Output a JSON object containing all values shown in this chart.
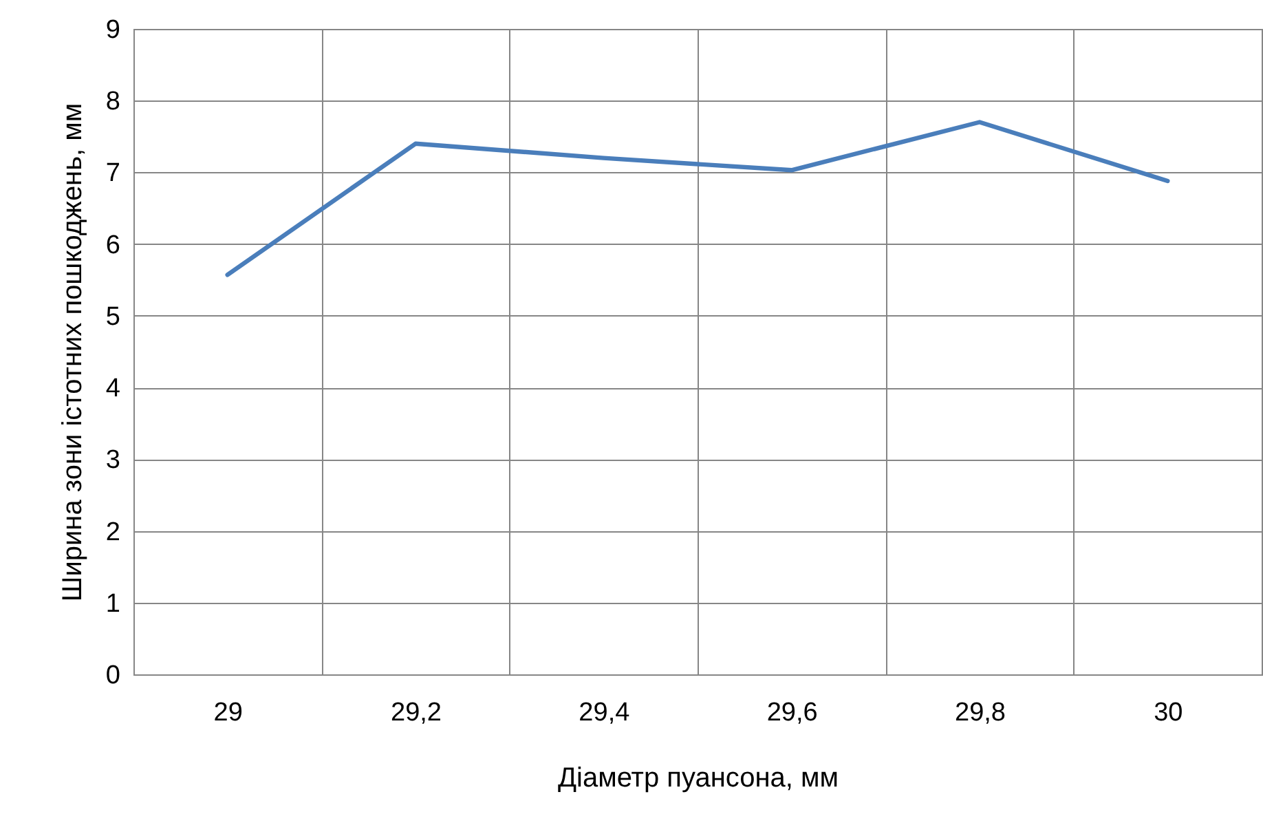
{
  "chart_data": {
    "type": "line",
    "xlabel": "Діаметр пуансона, мм",
    "ylabel": "Ширина зони істотних пошкоджень, мм",
    "categories": [
      "29",
      "29,2",
      "29,4",
      "29,6",
      "29,8",
      "30"
    ],
    "series": [
      {
        "color": "#4a7ebb",
        "values": [
          5.57,
          7.4,
          7.2,
          7.03,
          7.7,
          6.88
        ]
      }
    ],
    "ylim": [
      0,
      9
    ],
    "yticks": [
      0,
      1,
      2,
      3,
      4,
      5,
      6,
      7,
      8,
      9
    ],
    "grid": true,
    "marker": "none",
    "line_style": "solid"
  }
}
